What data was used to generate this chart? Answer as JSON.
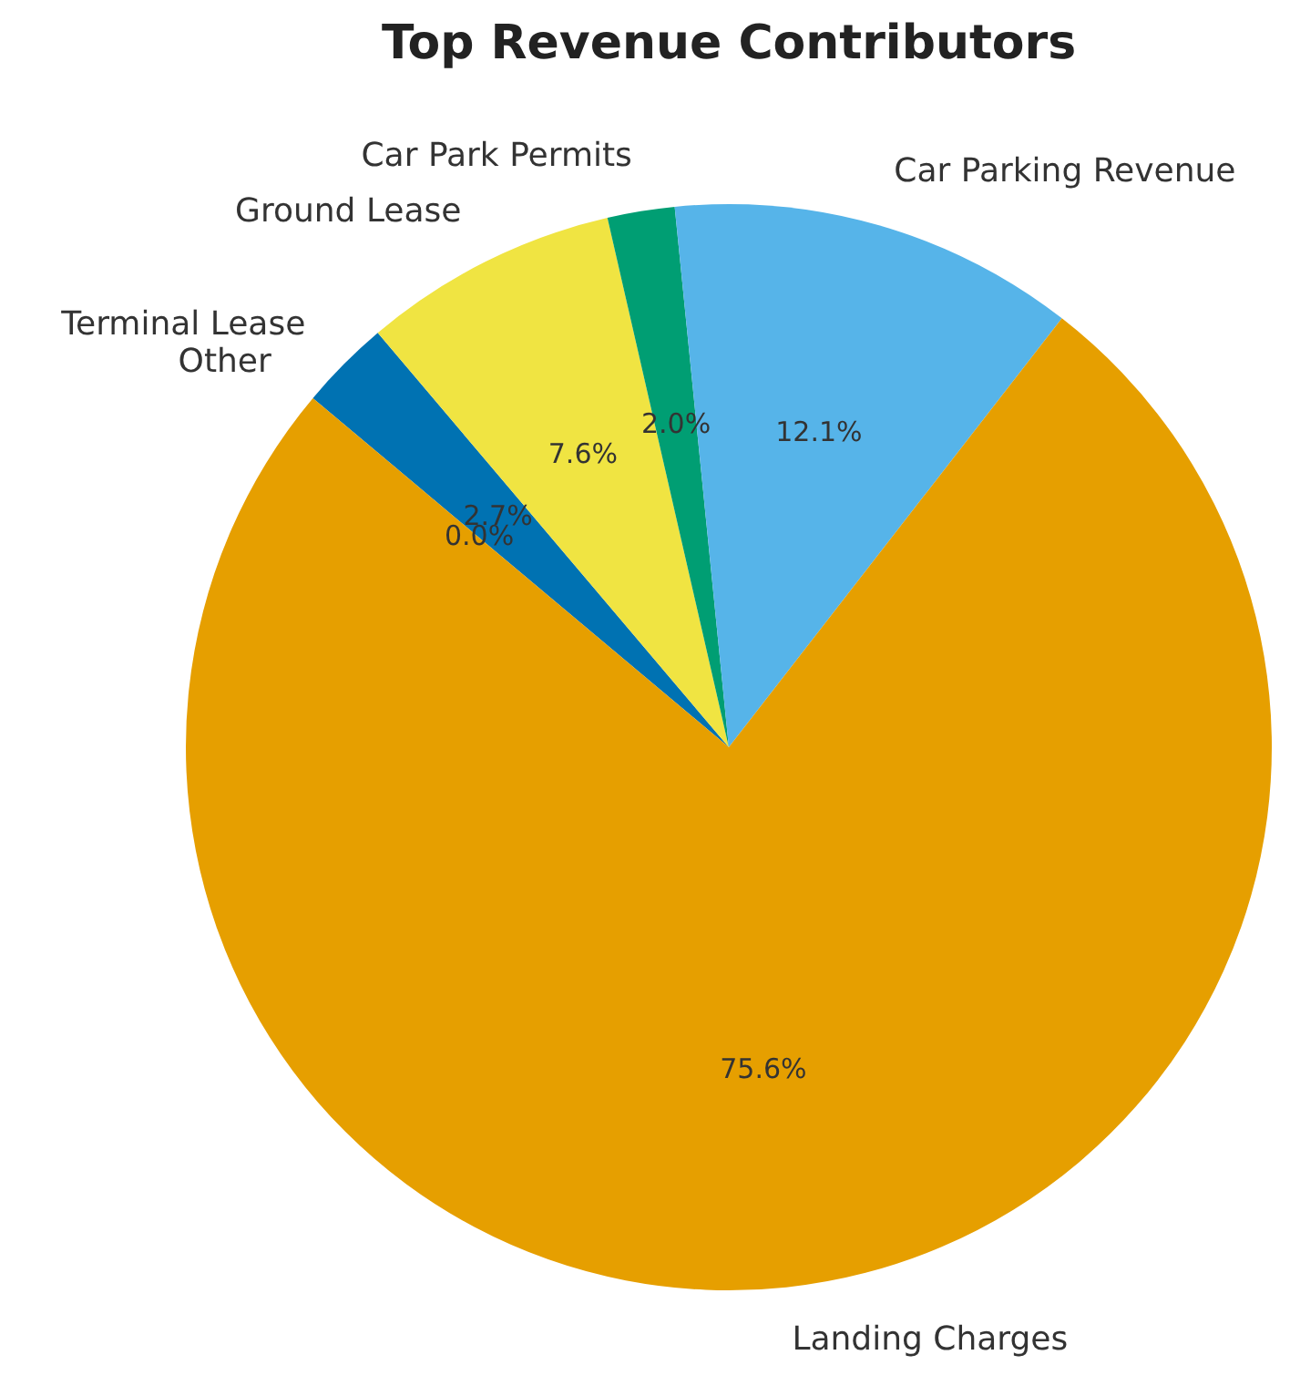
{
  "chart_data": {
    "type": "pie",
    "title": "Top Revenue Contributors",
    "categories": [
      "Landing Charges",
      "Car Parking Revenue",
      "Car Park Permits",
      "Ground Lease",
      "Terminal Lease",
      "Other"
    ],
    "values": [
      75.6,
      12.1,
      2.0,
      7.6,
      2.7,
      0.0
    ],
    "colors": [
      "#e69f00",
      "#56b4e9",
      "#009e73",
      "#f0e442",
      "#0072b2",
      "#d55e00"
    ],
    "value_labels": [
      "75.6%",
      "12.1%",
      "2.0%",
      "7.6%",
      "2.7%",
      "0.0%"
    ],
    "legend": false
  }
}
